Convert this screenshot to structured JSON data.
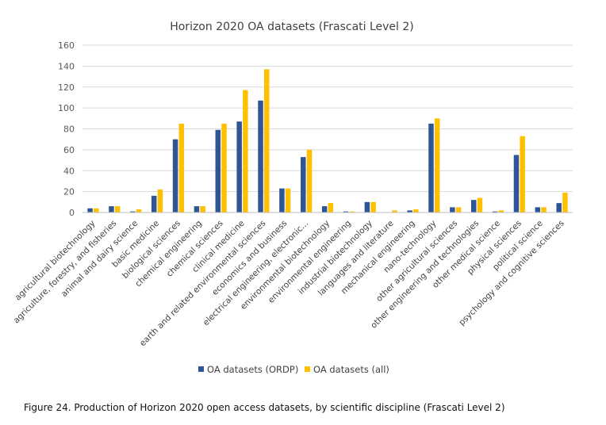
{
  "chart_data": {
    "type": "bar",
    "title": "Horizon 2020 OA datasets (Frascati Level 2)",
    "xlabel": "",
    "ylabel": "",
    "ylim": [
      0,
      160
    ],
    "yticks": [
      0,
      20,
      40,
      60,
      80,
      100,
      120,
      140,
      160
    ],
    "grid": true,
    "legend_position": "bottom",
    "categories": [
      "agricultural biotechnology",
      "agriculture, forestry, and fisheries",
      "animal and dairy science",
      "basic medicine",
      "biological sciences",
      "chemical engineering",
      "chemical sciences",
      "clinical medicine",
      "earth and related environmental sciences",
      "economics and business",
      "electrical engineering, electronic...",
      "environmental biotechnology",
      "environmental engineering",
      "industrial biotechnology",
      "languages and literature",
      "mechanical engineering",
      "nano-technology",
      "other agricultural sciences",
      "other engineering and technologies",
      "other medical science",
      "physical sciences",
      "political science",
      "psychology and cognitive sciences"
    ],
    "series": [
      {
        "name": "OA datasets (ORDP)",
        "color": "#2F5597",
        "values": [
          4,
          6,
          1,
          16,
          70,
          6,
          79,
          87,
          107,
          23,
          53,
          6,
          1,
          10,
          0,
          2,
          85,
          5,
          12,
          1,
          55,
          5,
          9
        ]
      },
      {
        "name": "OA datasets (all)",
        "color": "#FFC000",
        "values": [
          4,
          6,
          3,
          22,
          85,
          6,
          85,
          117,
          137,
          23,
          60,
          9,
          1,
          10,
          2,
          3,
          90,
          5,
          14,
          2,
          73,
          5,
          19
        ]
      }
    ]
  },
  "caption": "Figure 24. Production of Horizon 2020 open access datasets, by scientific discipline (Frascati Level 2)"
}
